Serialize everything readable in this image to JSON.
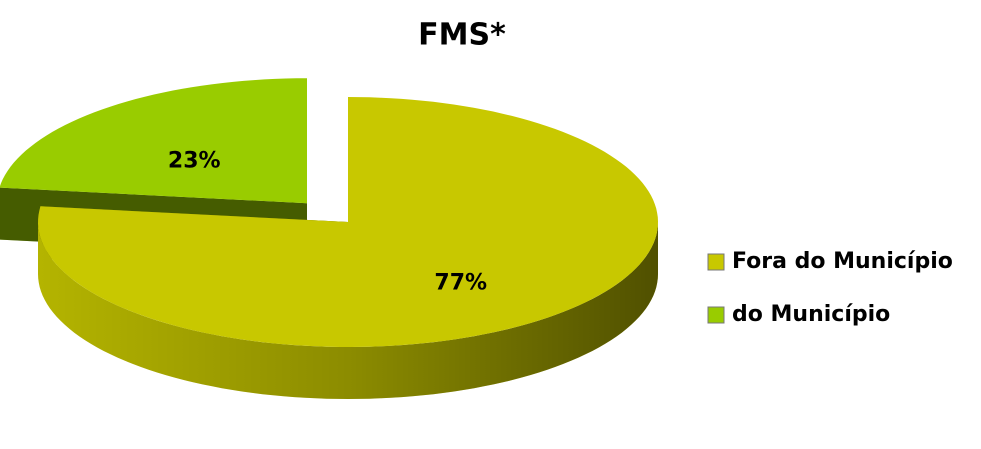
{
  "chart_data": {
    "type": "pie",
    "title": "FMS*",
    "categories": [
      "Fora do Município",
      "do Município"
    ],
    "values": [
      77,
      23
    ],
    "value_labels": [
      "77%",
      "23%"
    ],
    "colors": [
      "#c8c800",
      "#99cc00"
    ],
    "explode": [
      0,
      0.2
    ],
    "legend": "right"
  }
}
